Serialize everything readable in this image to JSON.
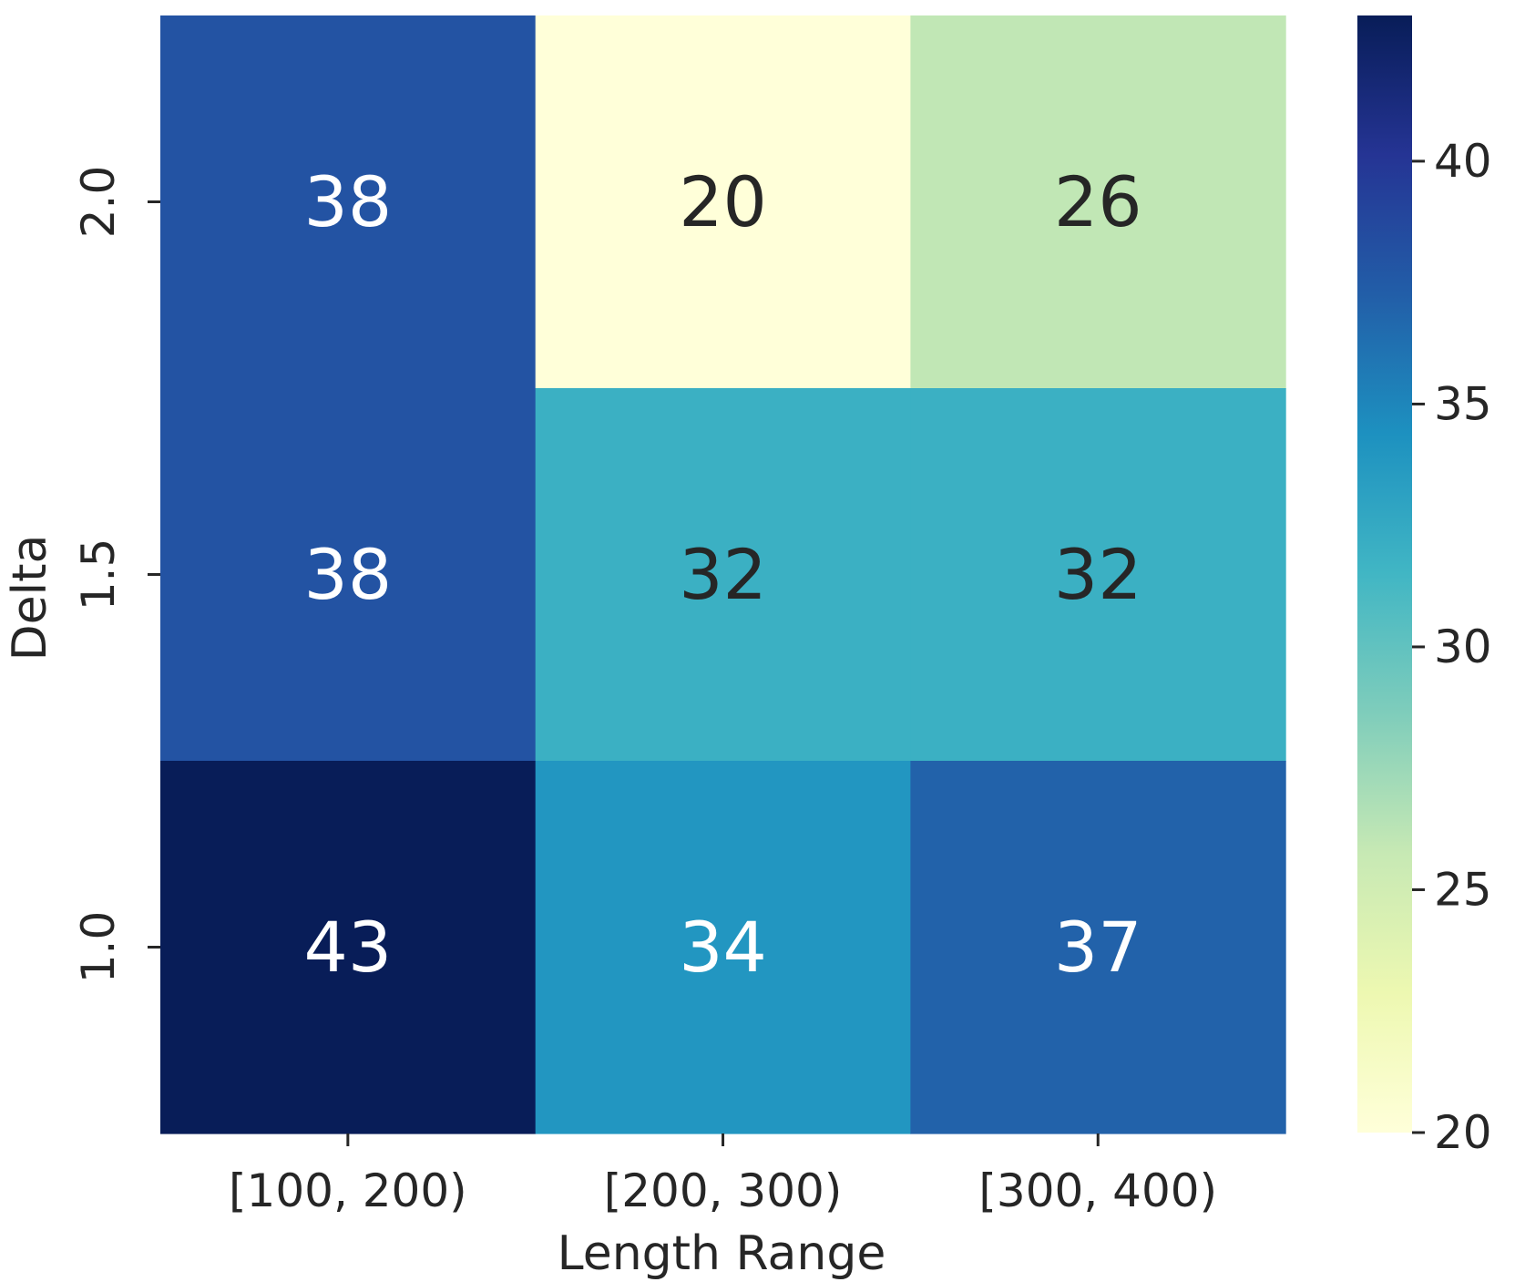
{
  "chart_data": {
    "type": "heatmap",
    "xlabel": "Length Range",
    "ylabel": "Delta",
    "x_categories": [
      "[100, 200)",
      "[200, 300)",
      "[300, 400)"
    ],
    "y_categories": [
      "2.0",
      "1.5",
      "1.0"
    ],
    "values": [
      [
        38,
        20,
        26
      ],
      [
        38,
        32,
        32
      ],
      [
        43,
        34,
        37
      ]
    ],
    "colormap": "YlGnBu",
    "colorbar": {
      "range": [
        20,
        43
      ],
      "ticks": [
        "20",
        "25",
        "30",
        "35",
        "40"
      ]
    },
    "annotation_colors": {
      "dark": "#262626",
      "light": "#ffffff"
    }
  }
}
